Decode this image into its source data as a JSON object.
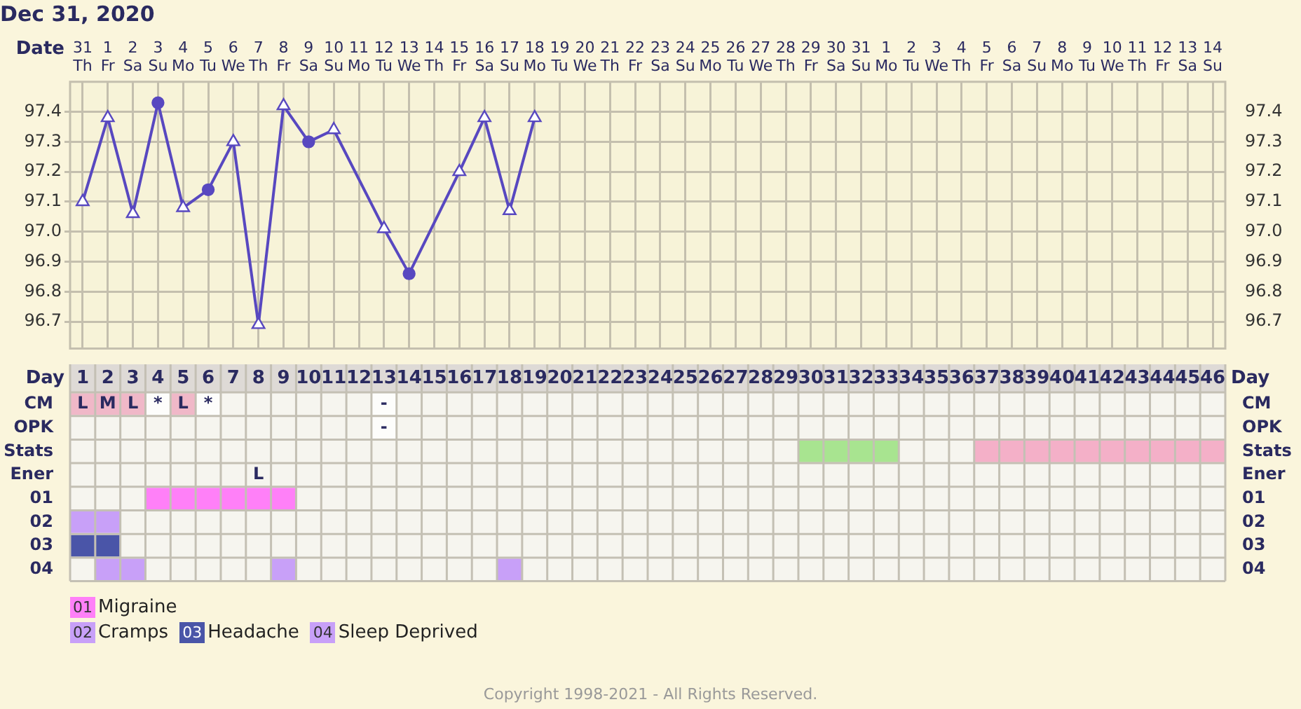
{
  "chart_data": [
    {
      "type": "line",
      "title": "Dec 31, 2020",
      "xlabel": "Date",
      "categories": [
        "31\nTh",
        "1\nFr",
        "2\nSa",
        "3\nSu",
        "4\nMo",
        "5\nTu",
        "6\nWe",
        "7\nTh",
        "8\nFr",
        "9\nSa",
        "10\nSu",
        "11\nMo",
        "12\nTu",
        "13\nWe",
        "14\nTh",
        "15\nFr",
        "16\nSa",
        "17\nSu",
        "18\nMo",
        "19\nTu",
        "20\nWe",
        "21\nTh",
        "22\nFr",
        "23\nSa",
        "24\nSu",
        "25\nMo",
        "26\nTu",
        "27\nWe",
        "28\nTh",
        "29\nFr",
        "30\nSa",
        "31\nSu",
        "1\nMo",
        "2\nTu",
        "3\nWe",
        "4\nTh",
        "5\nFr",
        "6\nSa",
        "7\nSu",
        "8\nMo",
        "9\nTu",
        "10\nWe",
        "11\nTh",
        "12\nFr",
        "13\nSa",
        "14\nSu"
      ],
      "series": [
        {
          "type": "line",
          "color": "#5848c0",
          "marker": "none",
          "line_style": "solid",
          "values": [
            97.1,
            97.38,
            97.06,
            97.43,
            97.08,
            97.14,
            97.3,
            96.69,
            97.42,
            97.3,
            97.34,
            null,
            97.01,
            96.86,
            null,
            97.2,
            97.38,
            97.07,
            97.38,
            null,
            null,
            null,
            null,
            null,
            null,
            null,
            null,
            null,
            null,
            null,
            null,
            null,
            null,
            null,
            null,
            null,
            null,
            null,
            null,
            null,
            null,
            null,
            null,
            null,
            null,
            null
          ]
        },
        {
          "type": "scatter",
          "color": "#5848c0",
          "marker": "triangle",
          "values": [
            97.1,
            97.38,
            97.06,
            null,
            97.08,
            null,
            97.3,
            96.69,
            97.42,
            null,
            97.34,
            null,
            97.01,
            null,
            null,
            97.2,
            97.38,
            97.07,
            97.38,
            null,
            null,
            null,
            null,
            null,
            null,
            null,
            null,
            null,
            null,
            null,
            null,
            null,
            null,
            null,
            null,
            null,
            null,
            null,
            null,
            null,
            null,
            null,
            null,
            null,
            null,
            null
          ]
        },
        {
          "type": "scatter",
          "color": "#5848c0",
          "marker": "circle",
          "values": [
            null,
            null,
            null,
            97.43,
            null,
            97.14,
            null,
            null,
            null,
            97.3,
            null,
            null,
            null,
            96.86,
            null,
            null,
            null,
            null,
            null,
            null,
            null,
            null,
            null,
            null,
            null,
            null,
            null,
            null,
            null,
            null,
            null,
            null,
            null,
            null,
            null,
            null,
            null,
            null,
            null,
            null,
            null,
            null,
            null,
            null,
            null,
            null
          ]
        }
      ],
      "ylim": [
        96.61,
        97.5
      ],
      "yticks": [
        96.7,
        96.8,
        96.9,
        {
          "value": 97,
          "label": "97.0"
        },
        97.1,
        97.2,
        97.3,
        97.4
      ],
      "y2lim": [
        96.61,
        97.5
      ],
      "y2ticks": [
        96.7,
        96.8,
        96.9,
        {
          "value": 97,
          "label": "97.0"
        },
        97.1,
        97.2,
        97.3,
        97.4
      ],
      "grid": true,
      "legend": false
    },
    {
      "type": "bar",
      "orientation": "horizontal",
      "xlabel": "Day",
      "categories": [
        "CM",
        "OPK",
        "Stats",
        "Ener",
        "01",
        "02",
        "03",
        "04"
      ],
      "series": [
        {
          "colors": [
            "#f0b8c8",
            null,
            "#a8e490",
            null,
            "#ff80f8",
            "#c8a0f8",
            "#4a55a8",
            "#c8a0f8"
          ],
          "values": [
            3,
            null,
            4,
            null,
            6,
            2,
            2,
            2
          ],
          "base": [
            0.5,
            null,
            29.5,
            null,
            3.5,
            0.5,
            0.5,
            1.5
          ]
        },
        {
          "colors": [
            "#f0b8c8",
            null,
            "#f4b0c8",
            null,
            null,
            null,
            null,
            "#c8a0f8"
          ],
          "values": [
            1,
            null,
            10,
            null,
            null,
            null,
            null,
            1
          ],
          "base": [
            4.5,
            null,
            36.5,
            null,
            null,
            null,
            null,
            8.5
          ]
        },
        {
          "colors": [
            null,
            null,
            null,
            null,
            null,
            null,
            null,
            "#c8a0f8"
          ],
          "values": [
            null,
            null,
            null,
            null,
            null,
            null,
            null,
            1
          ],
          "base": [
            null,
            null,
            null,
            null,
            null,
            null,
            null,
            17.5
          ]
        },
        {
          "colors": [
            "#fdfdfb",
            "#fdfdfb",
            null,
            null,
            null,
            null,
            null,
            null
          ],
          "values": [
            1,
            1,
            null,
            null,
            null,
            null,
            null,
            null
          ],
          "base": [
            3.5,
            12.5,
            null,
            null,
            null,
            null,
            null,
            null
          ]
        },
        {
          "colors": [
            "#fdfdfb",
            null,
            null,
            null,
            null,
            null,
            null,
            null
          ],
          "values": [
            1,
            null,
            null,
            null,
            null,
            null,
            null,
            null
          ],
          "base": [
            5.5,
            null,
            null,
            null,
            null,
            null,
            null,
            null
          ]
        },
        {
          "colors": [
            "#fdfdfb",
            null,
            null,
            null,
            null,
            null,
            null,
            null
          ],
          "values": [
            1,
            null,
            null,
            null,
            null,
            null,
            null,
            null
          ],
          "base": [
            12.5,
            null,
            null,
            null,
            null,
            null,
            null,
            null
          ]
        }
      ],
      "xlim": [
        0.5,
        46.5
      ],
      "xticks": [
        1,
        2,
        3,
        4,
        5,
        6,
        7,
        8,
        9,
        10,
        11,
        12,
        13,
        14,
        15,
        16,
        17,
        18,
        19,
        20,
        21,
        22,
        23,
        24,
        25,
        26,
        27,
        28,
        29,
        30,
        31,
        32,
        33,
        34,
        35,
        36,
        37,
        38,
        39,
        40,
        41,
        42,
        43,
        44,
        45,
        46
      ],
      "grid": true,
      "legend": false,
      "annotations": [
        {
          "text": "L",
          "x": 1,
          "y": "CM"
        },
        {
          "text": "M",
          "x": 2,
          "y": "CM"
        },
        {
          "text": "L",
          "x": 3,
          "y": "CM"
        },
        {
          "text": "*",
          "x": 4,
          "y": "CM"
        },
        {
          "text": "L",
          "x": 5,
          "y": "CM"
        },
        {
          "text": "*",
          "x": 6,
          "y": "CM"
        },
        {
          "text": "-",
          "x": 13,
          "y": "CM"
        },
        {
          "text": "-",
          "x": 13,
          "y": "OPK"
        },
        {
          "text": "L",
          "x": 8,
          "y": "Ener"
        },
        "01 Migraine",
        "02 Cramps",
        "03 Headache",
        "04 Sleep Deprived",
        "Copyright 1998-2021 - All Rights Reserved."
      ]
    }
  ]
}
